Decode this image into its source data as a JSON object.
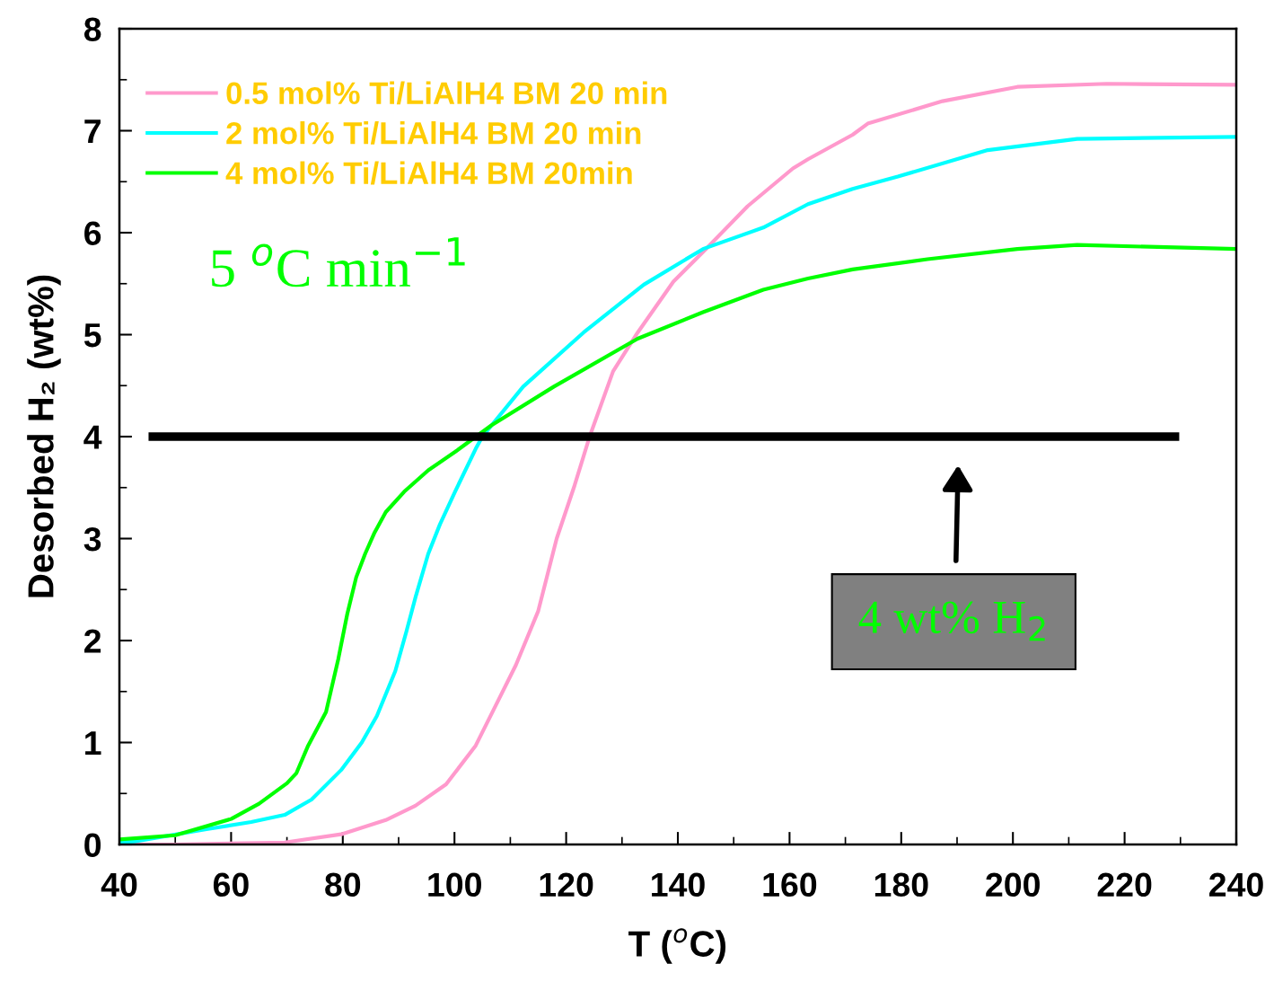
{
  "chart_data": {
    "type": "line",
    "xlabel": "T ($^{o}$C)",
    "ylabel": "Desorbed H₂ (wt%)",
    "xlim": [
      40,
      240
    ],
    "xticks": [
      40,
      60,
      80,
      100,
      120,
      140,
      160,
      180,
      200,
      220,
      240
    ],
    "ylim": [
      0,
      8
    ],
    "yticks": [
      0,
      1,
      2,
      3,
      4,
      5,
      6,
      7,
      8
    ],
    "legend": "top left",
    "marker": "none",
    "line_style": "solid",
    "grid": false,
    "series": [
      {
        "name": "0.5 mol% Ti/LiAlH4 BM 20 min",
        "color": "#ff99cc",
        "x": [
          40,
          50,
          69.6,
          79.7,
          87.7,
          93,
          98.5,
          103.8,
          107,
          111,
          115,
          118.3,
          121.5,
          124.2,
          128.4,
          132.8,
          139.2,
          144.5,
          152.5,
          160.6,
          163.3,
          171.3,
          174,
          187.4,
          200.8,
          216.8,
          240
        ],
        "values": [
          0,
          0,
          0.02,
          0.1,
          0.24,
          0.38,
          0.59,
          0.97,
          1.32,
          1.76,
          2.29,
          3.0,
          3.52,
          4.0,
          4.64,
          5.02,
          5.52,
          5.81,
          6.26,
          6.63,
          6.72,
          6.96,
          7.07,
          7.29,
          7.43,
          7.46,
          7.45
        ]
      },
      {
        "name": "2 mol% Ti/LiAlH4 BM 20 min",
        "color": "#00ffff",
        "x": [
          40,
          42.7,
          55.6,
          63.6,
          69.6,
          74.4,
          79.7,
          83.4,
          86.1,
          89.4,
          91.4,
          93.1,
          95.3,
          97.4,
          100.1,
          103.8,
          105,
          112.3,
          123.1,
          133.9,
          144.5,
          155.3,
          163.3,
          171.3,
          179.4,
          195.5,
          211.5,
          240
        ],
        "values": [
          0.02,
          0.03,
          0.15,
          0.22,
          0.29,
          0.44,
          0.73,
          1.0,
          1.26,
          1.7,
          2.09,
          2.44,
          2.85,
          3.14,
          3.46,
          3.88,
          4.0,
          4.49,
          5.02,
          5.49,
          5.84,
          6.05,
          6.28,
          6.43,
          6.55,
          6.81,
          6.92,
          6.94
        ]
      },
      {
        "name": "4 mol% Ti/LiAlH4 BM 20min",
        "color": "#00ff00",
        "x": [
          40,
          50,
          60,
          65,
          70,
          71.7,
          73.8,
          77,
          79.2,
          80.8,
          82.4,
          84,
          85.7,
          87.7,
          91,
          95.3,
          100.1,
          106.6,
          117.8,
          132.8,
          144.5,
          155.3,
          163.3,
          171.3,
          184.7,
          200.8,
          211.5,
          240
        ],
        "values": [
          0.05,
          0.09,
          0.25,
          0.4,
          0.6,
          0.7,
          0.97,
          1.3,
          1.82,
          2.26,
          2.62,
          2.85,
          3.06,
          3.26,
          3.46,
          3.67,
          3.85,
          4.11,
          4.49,
          4.96,
          5.22,
          5.44,
          5.55,
          5.64,
          5.74,
          5.84,
          5.88,
          5.84
        ]
      }
    ],
    "ref_lines": [
      {
        "axis": "y",
        "value": 4,
        "color": "#000000",
        "line_style": "solid"
      }
    ],
    "annotations": [
      "5 $^{o}$C min$^{−1}$",
      "4 wt% H$_{2}$"
    ]
  }
}
